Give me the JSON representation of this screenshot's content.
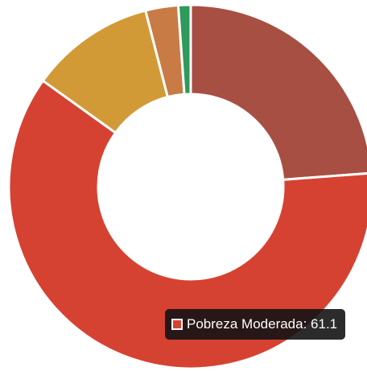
{
  "chart_data": {
    "type": "donut",
    "categories": [
      null,
      "Pobreza Moderada",
      null,
      null,
      null
    ],
    "values": [
      23.8,
      61.1,
      11.1,
      2.9,
      1.1
    ],
    "colors": [
      "#a84f43",
      "#d64232",
      "#d29a36",
      "#c87b45",
      "#2e9a5c"
    ],
    "tooltip_index": 1
  }
}
